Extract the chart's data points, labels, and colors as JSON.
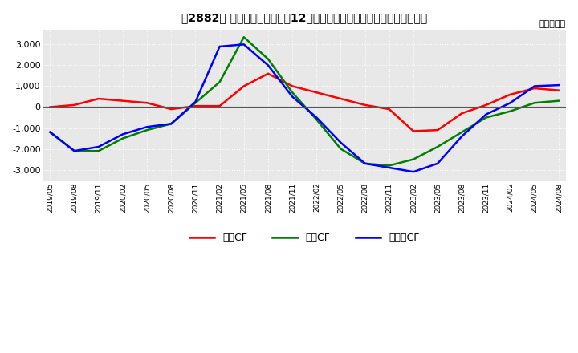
{
  "title": "　2882、 キャッシュフローの12か月移動合計の対前年同期増減額の推移",
  "ylabel": "（百万円）",
  "ylim": [
    -3500,
    3700
  ],
  "yticks": [
    -3000,
    -2000,
    -1000,
    0,
    1000,
    2000,
    3000
  ],
  "dates": [
    "2019/05",
    "2019/08",
    "2019/11",
    "2020/02",
    "2020/05",
    "2020/08",
    "2020/11",
    "2021/02",
    "2021/05",
    "2021/08",
    "2021/11",
    "2022/02",
    "2022/05",
    "2022/08",
    "2022/11",
    "2023/02",
    "2023/05",
    "2023/08",
    "2023/11",
    "2024/02",
    "2024/05",
    "2024/08"
  ],
  "operating_cf": [
    0,
    100,
    400,
    300,
    200,
    -100,
    50,
    50,
    1000,
    1600,
    1000,
    700,
    400,
    100,
    -100,
    -1150,
    -1100,
    -300,
    100,
    600,
    900,
    800
  ],
  "investing_cf": [
    -1200,
    -2100,
    -2100,
    -1500,
    -1100,
    -800,
    200,
    1200,
    3350,
    2300,
    700,
    -600,
    -2000,
    -2700,
    -2800,
    -2500,
    -1900,
    -1200,
    -500,
    -200,
    200,
    300
  ],
  "free_cf": [
    -1200,
    -2100,
    -1900,
    -1300,
    -950,
    -800,
    250,
    2900,
    3000,
    2000,
    500,
    -500,
    -1700,
    -2700,
    -2900,
    -3100,
    -2700,
    -1400,
    -350,
    200,
    1000,
    1050
  ],
  "operating_color": "#ff0000",
  "investing_color": "#008000",
  "free_color": "#0000ff",
  "bg_color": "#ffffff",
  "plot_bg_color": "#e8e8e8",
  "grid_color": "#ffffff",
  "legend_labels": [
    "営業CF",
    "投賃CF",
    "フリーCF"
  ]
}
